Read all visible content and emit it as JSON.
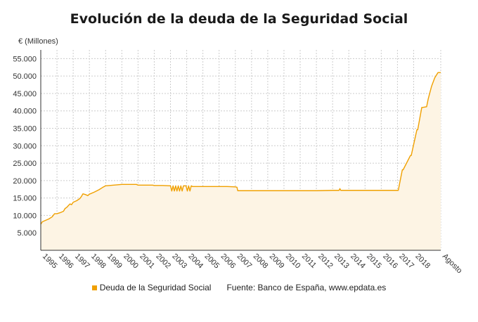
{
  "colors": {
    "series_line": "#f0a000",
    "series_fill": "#fdf4e4",
    "grid": "#cccccc",
    "axis": "#333333"
  },
  "chart_data": {
    "type": "area",
    "title": "Evolución de la deuda de la Seguridad Social",
    "ylabel": "€ (Millones)",
    "xlabel": "",
    "source": "Fuente: Banco de España, www.epdata.es",
    "ylim": [
      0,
      57500
    ],
    "yticks": [
      5000,
      10000,
      15000,
      20000,
      25000,
      30000,
      35000,
      40000,
      45000,
      50000,
      55000
    ],
    "ytick_labels": [
      "5.000",
      "10.000",
      "15.000",
      "20.000",
      "25.000",
      "30.000",
      "35.000",
      "40.000",
      "45.000",
      "50.000",
      "55.000"
    ],
    "xlim": [
      1995.0,
      2019.67
    ],
    "xticks": [
      1995,
      1996,
      1997,
      1998,
      1999,
      2000,
      2001,
      2002,
      2003,
      2004,
      2005,
      2006,
      2007,
      2008,
      2009,
      2010,
      2011,
      2012,
      2013,
      2014,
      2015,
      2016,
      2017,
      2018,
      2019.67
    ],
    "xtick_labels": [
      "1995",
      "1996",
      "1997",
      "1998",
      "1999",
      "2000",
      "2001",
      "2002",
      "2003",
      "2004",
      "2005",
      "2006",
      "2007",
      "2008",
      "2009",
      "2010",
      "2011",
      "2012",
      "2013",
      "2014",
      "2015",
      "2016",
      "2017",
      "2018",
      "Agosto"
    ],
    "grid": true,
    "legend_position": "bottom",
    "series": [
      {
        "name": "Deuda de la Seguridad Social",
        "x": [
          1995.0,
          1995.1,
          1995.3,
          1995.5,
          1995.7,
          1995.85,
          1996.0,
          1996.2,
          1996.4,
          1996.5,
          1996.6,
          1996.8,
          1996.9,
          1997.0,
          1997.2,
          1997.4,
          1997.5,
          1997.6,
          1997.75,
          1997.9,
          1998.0,
          1998.3,
          1998.6,
          1998.8,
          1999.0,
          1999.5,
          2000.0,
          2000.5,
          2000.9,
          2001.0,
          2001.5,
          2001.9,
          2002.0,
          2002.5,
          2003.0,
          2003.08,
          2003.16,
          2003.24,
          2003.32,
          2003.4,
          2003.48,
          2003.56,
          2003.64,
          2003.72,
          2003.8,
          2003.88,
          2003.96,
          2004.04,
          2004.12,
          2004.2,
          2004.28,
          2004.36,
          2004.44,
          2005.0,
          2005.5,
          2006.0,
          2006.5,
          2007.0,
          2007.1,
          2007.15,
          2008.0,
          2009.0,
          2010.0,
          2011.0,
          2012.0,
          2013.0,
          2013.4,
          2013.45,
          2013.5,
          2014.0,
          2015.0,
          2016.0,
          2017.0,
          2017.05,
          2017.3,
          2017.35,
          2017.8,
          2017.85,
          2018.2,
          2018.25,
          2018.5,
          2018.55,
          2018.8,
          2018.9,
          2019.1,
          2019.3,
          2019.5,
          2019.67
        ],
        "values": [
          7500,
          8200,
          8600,
          9000,
          9600,
          10500,
          10500,
          10800,
          11200,
          12000,
          12300,
          13300,
          13100,
          13800,
          14200,
          14800,
          15400,
          16200,
          16000,
          15700,
          16100,
          16700,
          17400,
          18000,
          18500,
          18700,
          18900,
          18900,
          18900,
          18700,
          18700,
          18700,
          18600,
          18600,
          18500,
          17000,
          18500,
          17000,
          18500,
          17000,
          18500,
          17000,
          18500,
          17000,
          18500,
          18500,
          18500,
          17000,
          18500,
          17000,
          18500,
          18300,
          18300,
          18300,
          18300,
          18300,
          18300,
          18200,
          18100,
          17100,
          17100,
          17100,
          17100,
          17100,
          17100,
          17200,
          17200,
          17700,
          17200,
          17200,
          17200,
          17200,
          17200,
          17200,
          23100,
          23100,
          27200,
          27200,
          34600,
          34600,
          41000,
          41000,
          41200,
          43500,
          47000,
          49500,
          51000,
          51000
        ]
      }
    ]
  }
}
